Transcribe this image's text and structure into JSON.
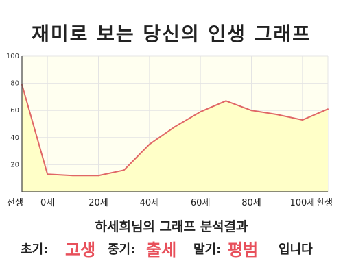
{
  "title": "재미로 보는 당신의 인생 그래프",
  "chart_data": {
    "type": "area",
    "x_ticks": [
      "전생",
      "0세",
      "20세",
      "40세",
      "60세",
      "80세",
      "100세",
      "환생"
    ],
    "y_ticks": [
      "20",
      "40",
      "60",
      "80",
      "100"
    ],
    "ylim": [
      0,
      100
    ],
    "grid": true,
    "colors": {
      "line": "#e06666",
      "fill": "#ffffc8",
      "plot_bg": "#fffff0",
      "grid": "#e4e4e4"
    },
    "series": [
      {
        "x": [
          "전생",
          "0세",
          "10세",
          "20세",
          "30세",
          "40세",
          "50세",
          "60세",
          "70세",
          "80세",
          "90세",
          "100세",
          "환생"
        ],
        "values": [
          79,
          13,
          12,
          12,
          16,
          35,
          48,
          59,
          67,
          60,
          57,
          53,
          61
        ]
      }
    ]
  },
  "result": {
    "subtitle": "하세희님의 그래프 분석결과",
    "early_label": "초기:",
    "early_value": "고생",
    "middle_label": "중기:",
    "middle_value": "출세",
    "late_label": "말기:",
    "late_value": "평범",
    "suffix": "입니다"
  }
}
